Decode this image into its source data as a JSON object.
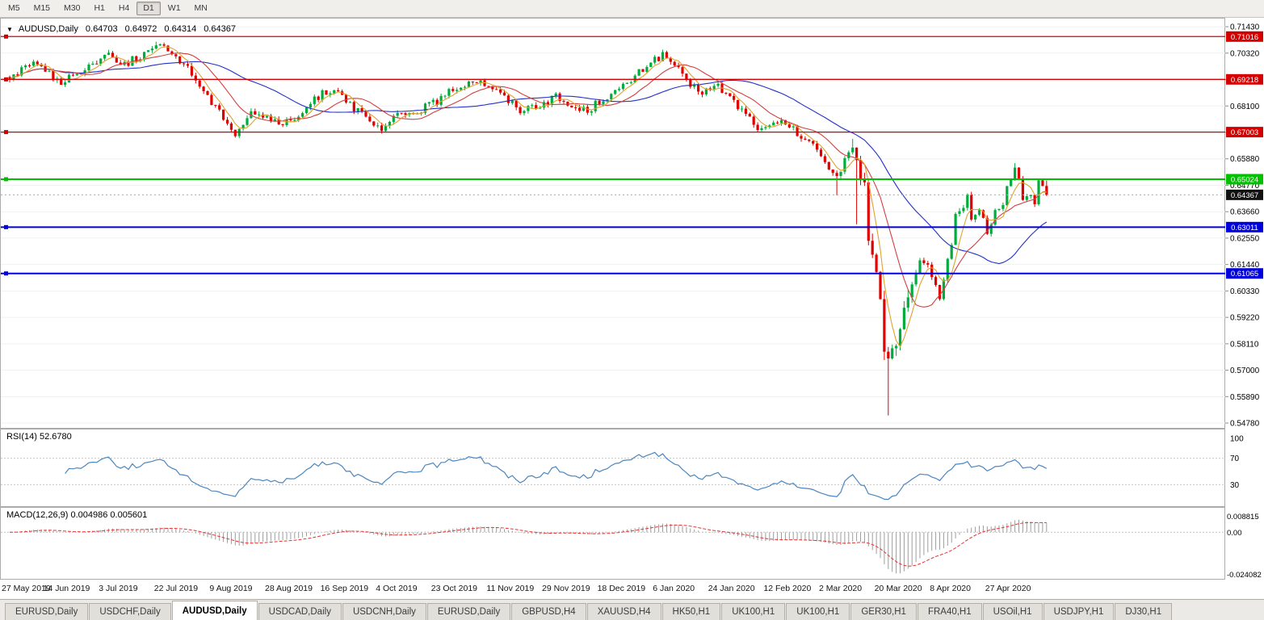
{
  "toolbar": {
    "active": "D1",
    "timeframes": [
      {
        "label": "M5"
      },
      {
        "label": "M15"
      },
      {
        "label": "M30"
      },
      {
        "label": "H1"
      },
      {
        "label": "H4"
      },
      {
        "label": "D1"
      },
      {
        "label": "W1"
      },
      {
        "label": "MN"
      }
    ]
  },
  "chart": {
    "title": {
      "symbol": "AUDUSD,Daily",
      "open": "0.64703",
      "high": "0.64972",
      "low": "0.64314",
      "close": "0.64367"
    },
    "current_price": "0.64367",
    "price_scale": {
      "top": 0.7167,
      "bottom": 0.5468
    },
    "y_axis_ticks": [
      "0.71430",
      "0.70320",
      "0.69210",
      "0.68100",
      "0.66990",
      "0.65880",
      "0.64770",
      "0.63660",
      "0.62550",
      "0.61440",
      "0.60330",
      "0.59220",
      "0.58110",
      "0.57000",
      "0.55890",
      "0.54780"
    ],
    "h_lines": [
      {
        "label": "0.71016",
        "value": 0.71016,
        "color": "#d40000",
        "width": 1.3
      },
      {
        "label": "0.69218",
        "value": 0.69218,
        "color": "#d40000",
        "width": 1.3
      },
      {
        "label": "0.67003",
        "value": 0.67003,
        "color": "#d40000",
        "width": 1.3
      },
      {
        "label": "0.65024",
        "value": 0.65024,
        "color": "#00c000",
        "width": 2
      },
      {
        "label": "0.63011",
        "value": 0.63011,
        "color": "#0000dd",
        "width": 2
      },
      {
        "label": "0.61065",
        "value": 0.61065,
        "color": "#0000dd",
        "width": 2
      }
    ]
  },
  "rsi": {
    "label": "RSI(14) 52.6780",
    "value": "52.6780",
    "color": "#4a86c0",
    "levels": [
      {
        "v": 100,
        "label": "100",
        "line": false
      },
      {
        "v": 70,
        "label": "70",
        "line": true
      },
      {
        "v": 30,
        "label": "30",
        "line": true
      }
    ]
  },
  "macd": {
    "label": "MACD(12,26,9) 0.004986 0.005601",
    "axis_top": "0.008815",
    "axis_zero": "0.00",
    "axis_bottom": "-0.024082",
    "scale": {
      "max": 0.008815,
      "min": -0.024082
    },
    "histogram_color": "#9d9d9d",
    "signal_color": "#e03535"
  },
  "x_axis": {
    "dates": [
      "27 May 2019",
      "14 Jun 2019",
      "3 Jul 2019",
      "22 Jul 2019",
      "9 Aug 2019",
      "28 Aug 2019",
      "16 Sep 2019",
      "4 Oct 2019",
      "23 Oct 2019",
      "11 Nov 2019",
      "29 Nov 2019",
      "18 Dec 2019",
      "6 Jan 2020",
      "24 Jan 2020",
      "12 Feb 2020",
      "2 Mar 2020",
      "20 Mar 2020",
      "8 Apr 2020",
      "27 Apr 2020"
    ]
  },
  "tabs": [
    {
      "label": "EURUSD,Daily"
    },
    {
      "label": "USDCHF,Daily"
    },
    {
      "label": "AUDUSD,Daily",
      "active": true
    },
    {
      "label": "USDCAD,Daily"
    },
    {
      "label": "USDCNH,Daily"
    },
    {
      "label": "EURUSD,Daily"
    },
    {
      "label": "GBPUSD,H4"
    },
    {
      "label": "XAUUSD,H4"
    },
    {
      "label": "HK50,H1"
    },
    {
      "label": "UK100,H1"
    },
    {
      "label": "UK100,H1"
    },
    {
      "label": "GER30,H1"
    },
    {
      "label": "FRA40,H1"
    },
    {
      "label": "USOil,H1"
    },
    {
      "label": "USDJPY,H1"
    },
    {
      "label": "DJ30,H1"
    }
  ],
  "chart_data": {
    "type": "candlestick",
    "symbol": "AUDUSD",
    "timeframe": "Daily",
    "bars": 263,
    "colors": {
      "up": "#00ad3c",
      "down": "#e00000"
    },
    "price_anchors": [
      [
        0,
        0.6927
      ],
      [
        3,
        0.696
      ],
      [
        7,
        0.7
      ],
      [
        11,
        0.693
      ],
      [
        13,
        0.69
      ],
      [
        16,
        0.694
      ],
      [
        20,
        0.698
      ],
      [
        25,
        0.703
      ],
      [
        29,
        0.6985
      ],
      [
        33,
        0.702
      ],
      [
        37,
        0.7058
      ],
      [
        40,
        0.7045
      ],
      [
        44,
        0.699
      ],
      [
        48,
        0.69
      ],
      [
        52,
        0.68
      ],
      [
        55,
        0.675
      ],
      [
        57,
        0.669
      ],
      [
        61,
        0.679
      ],
      [
        64,
        0.6765
      ],
      [
        67,
        0.6745
      ],
      [
        71,
        0.6735
      ],
      [
        75,
        0.68
      ],
      [
        79,
        0.6868
      ],
      [
        83,
        0.6882
      ],
      [
        87,
        0.68
      ],
      [
        91,
        0.674
      ],
      [
        94,
        0.6705
      ],
      [
        98,
        0.677
      ],
      [
        103,
        0.6788
      ],
      [
        108,
        0.683
      ],
      [
        113,
        0.6888
      ],
      [
        117,
        0.6922
      ],
      [
        121,
        0.69
      ],
      [
        125,
        0.6845
      ],
      [
        129,
        0.6795
      ],
      [
        133,
        0.6812
      ],
      [
        138,
        0.6848
      ],
      [
        142,
        0.6805
      ],
      [
        146,
        0.679
      ],
      [
        150,
        0.6845
      ],
      [
        154,
        0.6875
      ],
      [
        158,
        0.6932
      ],
      [
        162,
        0.7
      ],
      [
        165,
        0.7022
      ],
      [
        168,
        0.6985
      ],
      [
        171,
        0.6905
      ],
      [
        175,
        0.6872
      ],
      [
        179,
        0.6892
      ],
      [
        182,
        0.6845
      ],
      [
        186,
        0.6775
      ],
      [
        190,
        0.6705
      ],
      [
        193,
        0.6728
      ],
      [
        196,
        0.6742
      ],
      [
        199,
        0.669
      ],
      [
        202,
        0.666
      ],
      [
        205,
        0.66
      ],
      [
        207,
        0.655
      ],
      [
        209,
        0.6515
      ],
      [
        210,
        0.654
      ],
      [
        211,
        0.659
      ],
      [
        213,
        0.664
      ],
      [
        214,
        0.658
      ],
      [
        215,
        0.65
      ],
      [
        216,
        0.6485
      ],
      [
        217,
        0.6235
      ],
      [
        218,
        0.618
      ],
      [
        219,
        0.612
      ],
      [
        220,
        0.599
      ],
      [
        221,
        0.577
      ],
      [
        222,
        0.5745
      ],
      [
        223,
        0.58
      ],
      [
        224,
        0.58
      ],
      [
        226,
        0.596
      ],
      [
        228,
        0.606
      ],
      [
        230,
        0.6165
      ],
      [
        232,
        0.6135
      ],
      [
        234,
        0.606
      ],
      [
        235,
        0.5998
      ],
      [
        236,
        0.6085
      ],
      [
        237,
        0.6165
      ],
      [
        238,
        0.623
      ],
      [
        239,
        0.6349
      ],
      [
        241,
        0.638
      ],
      [
        242,
        0.6435
      ],
      [
        243,
        0.6325
      ],
      [
        245,
        0.6365
      ],
      [
        246,
        0.6335
      ],
      [
        247,
        0.627
      ],
      [
        249,
        0.637
      ],
      [
        251,
        0.6395
      ],
      [
        252,
        0.6465
      ],
      [
        254,
        0.655
      ],
      [
        255,
        0.651
      ],
      [
        256,
        0.6415
      ],
      [
        258,
        0.6435
      ],
      [
        259,
        0.6405
      ],
      [
        260,
        0.6495
      ],
      [
        261,
        0.647
      ],
      [
        262,
        0.64367
      ]
    ],
    "forced_wicks": [
      {
        "i": 37,
        "high": 0.708
      },
      {
        "i": 57,
        "low": 0.6677
      },
      {
        "i": 209,
        "low": 0.6434
      },
      {
        "i": 213,
        "high": 0.6672
      },
      {
        "i": 214,
        "low": 0.6313
      },
      {
        "i": 222,
        "low": 0.551
      },
      {
        "i": 254,
        "high": 0.657
      },
      {
        "i": 262,
        "high": 0.64972,
        "low": 0.64314
      }
    ],
    "ma": [
      {
        "period": 34,
        "color": "#2230c8"
      },
      {
        "period": 13,
        "color": "#d23f3f"
      },
      {
        "period": 5,
        "color": "#dfa32e"
      }
    ],
    "indicators": {
      "rsi": {
        "period": 14,
        "last": 52.678
      },
      "macd": {
        "fast": 12,
        "slow": 26,
        "signal": 9,
        "last": 0.004986,
        "signal_last": 0.005601
      }
    }
  }
}
